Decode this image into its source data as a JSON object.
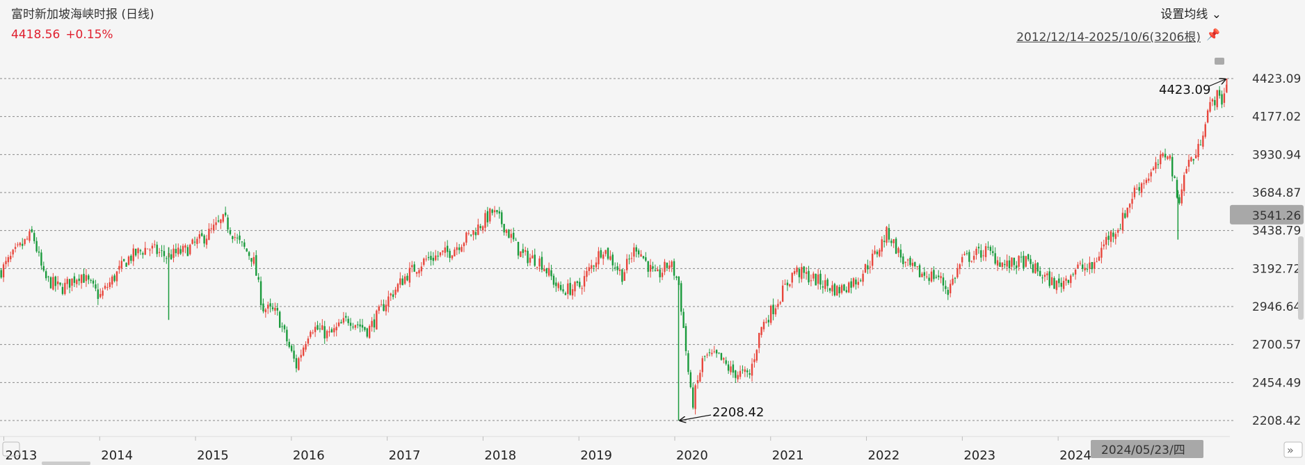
{
  "header": {
    "title": "富时新加坡海峡时报 (日线)",
    "last_price": "4418.56",
    "change_pct": "+0.15%",
    "ma_button": "设置均线",
    "date_range": "2012/12/14-2025/10/6(3206根)"
  },
  "colors": {
    "up": "#e8463c",
    "down": "#1a9a3c",
    "price_text": "#e0202f",
    "badge_bg": "#a8a8a8"
  },
  "icons": {
    "pin": "pin-icon",
    "chevron": "chevron-down-icon",
    "scroll_right": "double-chevron-right-icon",
    "scroll_left": "scroll-left-icon",
    "collapse": "collapse-icon"
  },
  "chart_data": {
    "type": "candlestick",
    "title": "富时新加坡海峡时报 (日线)",
    "y_ticks": [
      "4423.09",
      "4177.02",
      "3930.94",
      "3684.87",
      "3438.79",
      "3192.72",
      "2946.64",
      "2700.57",
      "2454.49",
      "2208.42"
    ],
    "ylim": [
      2208.42,
      4423.09
    ],
    "x_ticks": [
      "2013",
      "2014",
      "2015",
      "2016",
      "2017",
      "2018",
      "2019",
      "2020",
      "2021",
      "2022",
      "2023",
      "2024"
    ],
    "xlim": [
      2012.96,
      2025.77
    ],
    "crosshair_price": "3541.26",
    "crosshair_date": "2024/05/23/四",
    "max_label": "4423.09",
    "min_label": "2208.42",
    "max_point": {
      "x": 2025.76,
      "y": 4423.09
    },
    "min_point": {
      "x": 2020.04,
      "y": 2208.42
    },
    "close_series": [
      {
        "x": 2012.96,
        "y": 3170
      },
      {
        "x": 2013.1,
        "y": 3280
      },
      {
        "x": 2013.3,
        "y": 3420
      },
      {
        "x": 2013.42,
        "y": 3130
      },
      {
        "x": 2013.6,
        "y": 3060
      },
      {
        "x": 2013.8,
        "y": 3160
      },
      {
        "x": 2014.0,
        "y": 3010
      },
      {
        "x": 2014.3,
        "y": 3260
      },
      {
        "x": 2014.5,
        "y": 3330
      },
      {
        "x": 2014.7,
        "y": 3270
      },
      {
        "x": 2014.9,
        "y": 3310
      },
      {
        "x": 2015.1,
        "y": 3400
      },
      {
        "x": 2015.3,
        "y": 3510
      },
      {
        "x": 2015.45,
        "y": 3360
      },
      {
        "x": 2015.6,
        "y": 3260
      },
      {
        "x": 2015.7,
        "y": 2940
      },
      {
        "x": 2015.85,
        "y": 2900
      },
      {
        "x": 2016.05,
        "y": 2560
      },
      {
        "x": 2016.2,
        "y": 2820
      },
      {
        "x": 2016.4,
        "y": 2760
      },
      {
        "x": 2016.6,
        "y": 2870
      },
      {
        "x": 2016.8,
        "y": 2790
      },
      {
        "x": 2017.0,
        "y": 2990
      },
      {
        "x": 2017.2,
        "y": 3150
      },
      {
        "x": 2017.4,
        "y": 3250
      },
      {
        "x": 2017.65,
        "y": 3300
      },
      {
        "x": 2017.9,
        "y": 3430
      },
      {
        "x": 2018.1,
        "y": 3560
      },
      {
        "x": 2018.22,
        "y": 3470
      },
      {
        "x": 2018.4,
        "y": 3280
      },
      {
        "x": 2018.6,
        "y": 3240
      },
      {
        "x": 2018.8,
        "y": 3050
      },
      {
        "x": 2019.0,
        "y": 3070
      },
      {
        "x": 2019.25,
        "y": 3330
      },
      {
        "x": 2019.45,
        "y": 3150
      },
      {
        "x": 2019.6,
        "y": 3340
      },
      {
        "x": 2019.8,
        "y": 3130
      },
      {
        "x": 2019.95,
        "y": 3230
      },
      {
        "x": 2020.04,
        "y": 3100
      },
      {
        "x": 2020.18,
        "y": 2300
      },
      {
        "x": 2020.3,
        "y": 2620
      },
      {
        "x": 2020.45,
        "y": 2620
      },
      {
        "x": 2020.6,
        "y": 2520
      },
      {
        "x": 2020.78,
        "y": 2500
      },
      {
        "x": 2020.9,
        "y": 2810
      },
      {
        "x": 2021.05,
        "y": 2960
      },
      {
        "x": 2021.25,
        "y": 3180
      },
      {
        "x": 2021.5,
        "y": 3110
      },
      {
        "x": 2021.7,
        "y": 3050
      },
      {
        "x": 2021.9,
        "y": 3120
      },
      {
        "x": 2022.1,
        "y": 3290
      },
      {
        "x": 2022.22,
        "y": 3430
      },
      {
        "x": 2022.4,
        "y": 3220
      },
      {
        "x": 2022.55,
        "y": 3160
      },
      {
        "x": 2022.75,
        "y": 3140
      },
      {
        "x": 2022.85,
        "y": 3050
      },
      {
        "x": 2023.0,
        "y": 3250
      },
      {
        "x": 2023.25,
        "y": 3310
      },
      {
        "x": 2023.45,
        "y": 3210
      },
      {
        "x": 2023.65,
        "y": 3240
      },
      {
        "x": 2023.85,
        "y": 3140
      },
      {
        "x": 2024.0,
        "y": 3080
      },
      {
        "x": 2024.2,
        "y": 3200
      },
      {
        "x": 2024.35,
        "y": 3190
      },
      {
        "x": 2024.5,
        "y": 3380
      },
      {
        "x": 2024.65,
        "y": 3480
      },
      {
        "x": 2024.8,
        "y": 3700
      },
      {
        "x": 2025.0,
        "y": 3830
      },
      {
        "x": 2025.15,
        "y": 3960
      },
      {
        "x": 2025.25,
        "y": 3620
      },
      {
        "x": 2025.35,
        "y": 3880
      },
      {
        "x": 2025.45,
        "y": 3930
      },
      {
        "x": 2025.55,
        "y": 4200
      },
      {
        "x": 2025.65,
        "y": 4310
      },
      {
        "x": 2025.72,
        "y": 4280
      },
      {
        "x": 2025.76,
        "y": 4418.56
      }
    ]
  }
}
